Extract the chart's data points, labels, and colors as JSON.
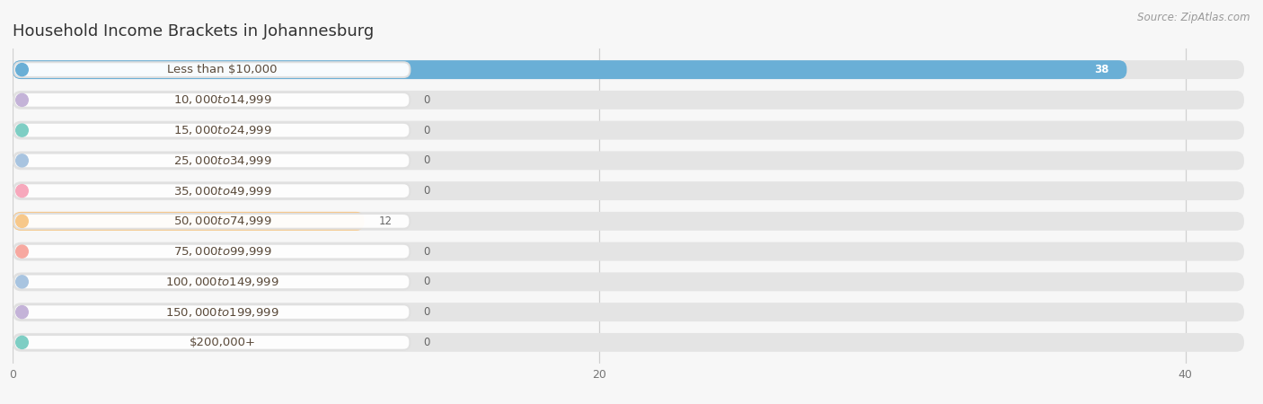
{
  "title": "Household Income Brackets in Johannesburg",
  "source": "Source: ZipAtlas.com",
  "categories": [
    "Less than $10,000",
    "$10,000 to $14,999",
    "$15,000 to $24,999",
    "$25,000 to $34,999",
    "$35,000 to $49,999",
    "$50,000 to $74,999",
    "$75,000 to $99,999",
    "$100,000 to $149,999",
    "$150,000 to $199,999",
    "$200,000+"
  ],
  "values": [
    38,
    0,
    0,
    0,
    0,
    12,
    0,
    0,
    0,
    0
  ],
  "bar_colors": [
    "#6aafd6",
    "#c4b3d8",
    "#7ecec4",
    "#a8c4e0",
    "#f7a8bc",
    "#f7c88a",
    "#f7a8a0",
    "#a8c4e0",
    "#c4b3d8",
    "#7ecec4"
  ],
  "xlim": [
    0,
    42
  ],
  "xticks": [
    0,
    20,
    40
  ],
  "background_color": "#f7f7f7",
  "bar_bg_color": "#e4e4e4",
  "label_box_color": "#ffffff",
  "grid_color": "#d0d0d0",
  "title_fontsize": 13,
  "label_fontsize": 9.5,
  "value_fontsize": 8.5,
  "source_fontsize": 8.5,
  "title_color": "#333333",
  "label_text_color": "#5a4a3a",
  "value_color_inside": "#ffffff",
  "value_color_outside": "#666666",
  "source_color": "#999999"
}
